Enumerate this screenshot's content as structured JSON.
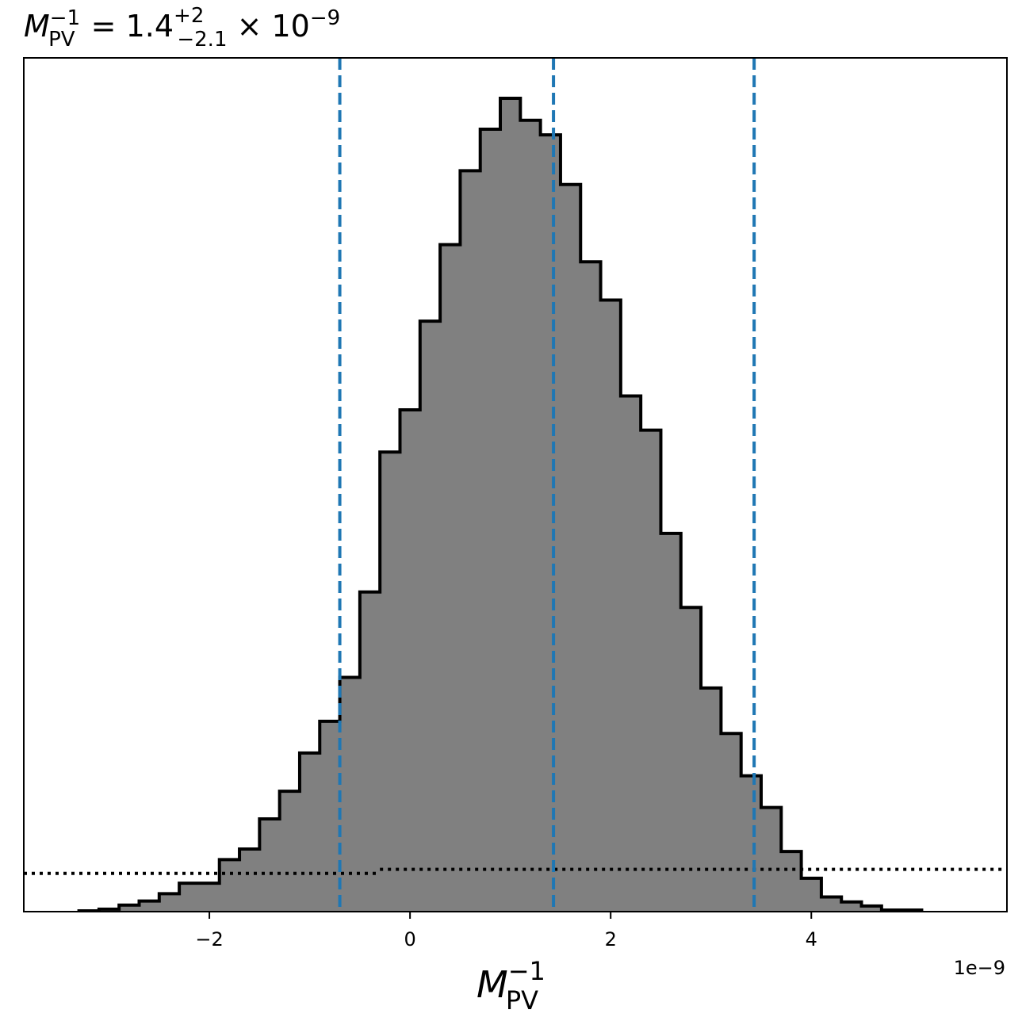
{
  "chart_data": {
    "type": "histogram",
    "title": {
      "symbol": "M",
      "sup": "−1",
      "sub": "PV",
      "eq": " = 1.4",
      "plus": "+2",
      "minus": "−2.1",
      "times": " × 10",
      "exp": "−9"
    },
    "xlabel": {
      "symbol": "M",
      "sup": "−1",
      "sub": "PV"
    },
    "x_offset_label": "1e−9",
    "xlim": [
      -3.85,
      5.95
    ],
    "ylim": [
      0,
      1.0
    ],
    "xticks": [
      {
        "value": -2,
        "label": "−2"
      },
      {
        "value": 0,
        "label": "0"
      },
      {
        "value": 2,
        "label": "2"
      },
      {
        "value": 4,
        "label": "4"
      }
    ],
    "bin_start": -3.3,
    "bin_width": 0.2,
    "counts": [
      0.001,
      0.003,
      0.008,
      0.013,
      0.022,
      0.035,
      0.035,
      0.064,
      0.077,
      0.114,
      0.148,
      0.195,
      0.234,
      0.288,
      0.393,
      0.565,
      0.617,
      0.726,
      0.82,
      0.911,
      0.962,
      1.0,
      0.973,
      0.955,
      0.894,
      0.799,
      0.752,
      0.634,
      0.592,
      0.465,
      0.374,
      0.275,
      0.219,
      0.167,
      0.128,
      0.074,
      0.041,
      0.018,
      0.012,
      0.007,
      0.002,
      0.002
    ],
    "fill_color": "#808080",
    "edge_color": "#000000",
    "vlines": [
      -0.7,
      1.43,
      3.43
    ],
    "vline_color": "#1f77b4",
    "dotted_baseline": [
      {
        "x_from": -3.85,
        "x_to": -0.3,
        "y": 0.047
      },
      {
        "x_from": -0.3,
        "x_to": 5.95,
        "y": 0.052
      }
    ],
    "grid": false,
    "legend": "none"
  }
}
